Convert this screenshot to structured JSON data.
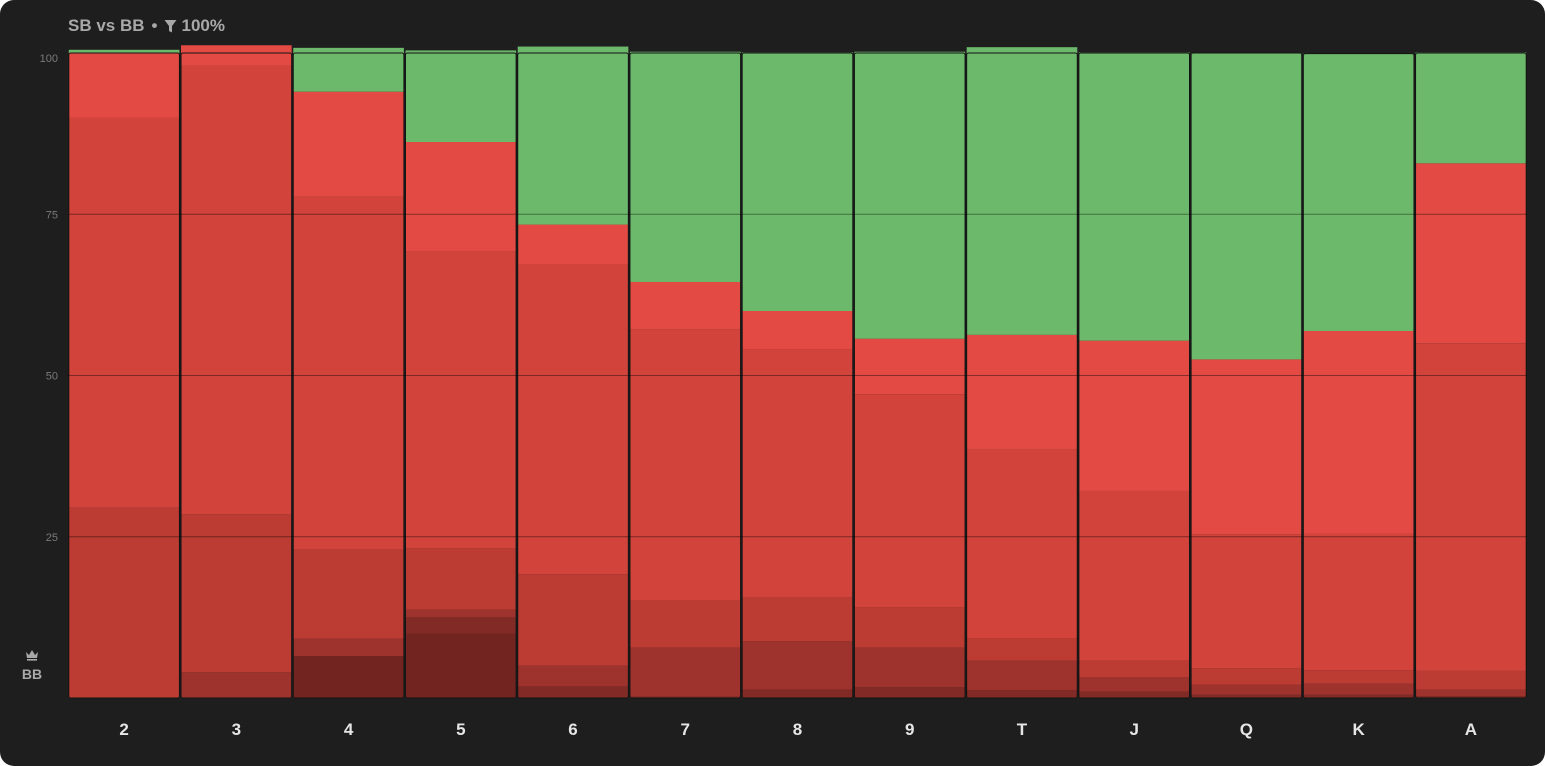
{
  "header": {
    "title": "SB vs BB",
    "separator": "•",
    "filter_icon": "filter-icon",
    "filter_value": "100%"
  },
  "position": {
    "icon": "crown-icon",
    "label": "BB"
  },
  "colors": {
    "background": "#1e1e1e",
    "green": "#6db96b",
    "layers": [
      "#e34a43",
      "#d1433b",
      "#bc3c34",
      "#9e322c",
      "#822a25",
      "#722420"
    ]
  },
  "chart_data": {
    "type": "bar",
    "stacked": true,
    "ylim": [
      0,
      100
    ],
    "yticks": [
      "100",
      "75",
      "50",
      "25"
    ],
    "categories": [
      "2",
      "3",
      "4",
      "5",
      "6",
      "7",
      "8",
      "9",
      "T",
      "J",
      "Q",
      "K",
      "A"
    ],
    "series": [
      {
        "color": "#722420",
        "values": [
          0,
          0,
          6.5,
          10,
          0,
          0,
          0,
          0,
          0,
          0,
          0,
          0,
          0
        ]
      },
      {
        "color": "#822a25",
        "values": [
          0,
          0,
          0,
          2.5,
          1.8,
          0.2,
          1.3,
          1.7,
          1.2,
          1,
          0.5,
          0.5,
          0.3
        ]
      },
      {
        "color": "#9e322c",
        "values": [
          0,
          4,
          2.7,
          1.2,
          3.2,
          7.6,
          7.5,
          6.1,
          4.6,
          2.2,
          1.6,
          1.7,
          1.0
        ]
      },
      {
        "color": "#bc3c34",
        "values": [
          29.5,
          24.5,
          13.8,
          9.5,
          14.2,
          7.3,
          6.8,
          6.3,
          3.5,
          2.6,
          2.5,
          2.1,
          2.9
        ]
      },
      {
        "color": "#d1433b",
        "values": [
          60.5,
          69.5,
          54.7,
          46,
          48,
          42,
          38.5,
          33,
          29.2,
          26.3,
          20.8,
          21.2,
          50.8
        ]
      },
      {
        "color": "#e34a43",
        "values": [
          10,
          3.2,
          16.3,
          17,
          6.2,
          7.4,
          5.9,
          8.6,
          17.8,
          23.3,
          27.1,
          31.4,
          27.9
        ]
      },
      {
        "color": "#6db96b",
        "values": [
          0.5,
          0,
          6.8,
          14.2,
          27.6,
          35.7,
          40.1,
          44.5,
          44.6,
          44.7,
          47.5,
          43.0,
          17.2
        ]
      }
    ]
  }
}
